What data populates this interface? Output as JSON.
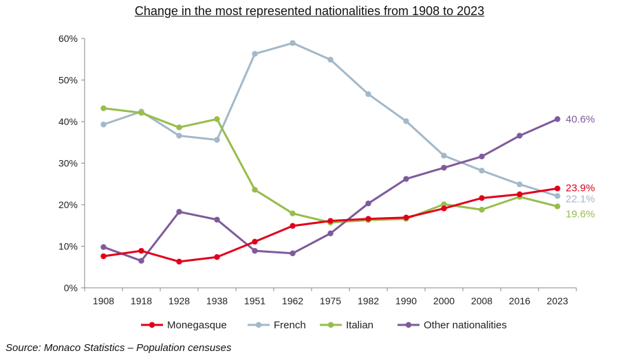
{
  "chart_data": {
    "type": "line",
    "title": "Change in the most represented nationalities from 1908 to 2023",
    "xlabel": "",
    "ylabel": "",
    "categories": [
      "1908",
      "1918",
      "1928",
      "1938",
      "1951",
      "1962",
      "1975",
      "1982",
      "1990",
      "2000",
      "2008",
      "2016",
      "2023"
    ],
    "ylim": [
      0,
      60
    ],
    "yticks": [
      "0%",
      "10%",
      "20%",
      "30%",
      "40%",
      "50%",
      "60%"
    ],
    "legend_position": "bottom",
    "grid": false,
    "series": [
      {
        "name": "Monegasque",
        "color": "#e1001a",
        "values": [
          7.6,
          8.9,
          6.3,
          7.4,
          11.1,
          14.9,
          16.1,
          16.6,
          16.9,
          19.1,
          21.6,
          22.5,
          23.9
        ],
        "end_label": "23.9%"
      },
      {
        "name": "French",
        "color": "#a3b8c8",
        "values": [
          39.3,
          42.4,
          36.6,
          35.6,
          56.3,
          58.9,
          54.9,
          46.6,
          40.1,
          31.8,
          28.2,
          24.9,
          22.1
        ],
        "end_label": "22.1%"
      },
      {
        "name": "Italian",
        "color": "#97bd4c",
        "values": [
          43.2,
          42.1,
          38.6,
          40.6,
          23.6,
          17.9,
          15.7,
          16.3,
          16.6,
          20.1,
          18.8,
          21.9,
          19.6
        ],
        "end_label": "19.6%"
      },
      {
        "name": "Other nationalities",
        "color": "#7e5a9b",
        "values": [
          9.8,
          6.5,
          18.3,
          16.4,
          8.9,
          8.3,
          13.1,
          20.3,
          26.2,
          28.9,
          31.6,
          36.6,
          40.6
        ],
        "end_label": "40.6%"
      }
    ]
  },
  "source": "Source: Monaco Statistics – Population censuses"
}
